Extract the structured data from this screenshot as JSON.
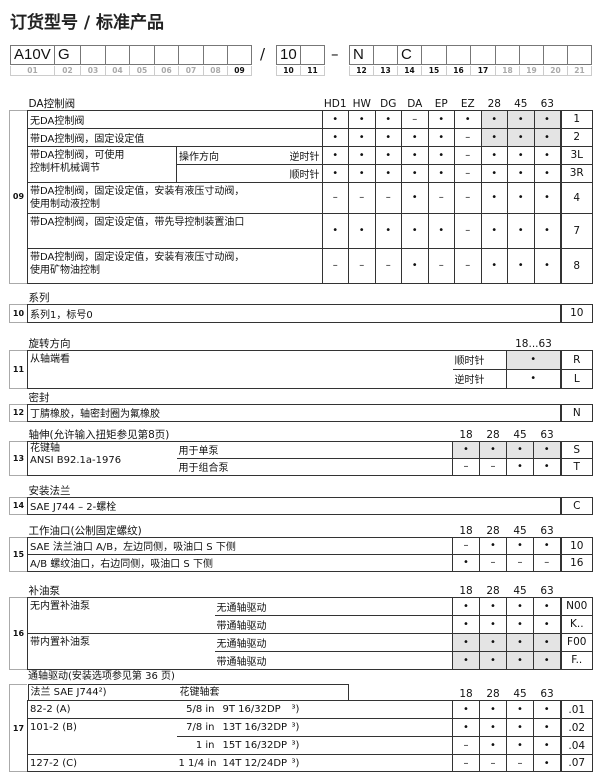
{
  "title": "订货型号 / 标准产品",
  "code_bar": {
    "group1": {
      "values": [
        "A10V",
        "G",
        "",
        "",
        "",
        "",
        "",
        "",
        ""
      ],
      "labels": [
        "01",
        "02",
        "03",
        "04",
        "05",
        "06",
        "07",
        "08",
        "09"
      ]
    },
    "sep1": "/",
    "group2": {
      "values": [
        "10",
        ""
      ],
      "labels": [
        "10",
        "11"
      ]
    },
    "sep2": "–",
    "group3": {
      "values": [
        "N",
        "",
        "C",
        "",
        "",
        "",
        "",
        "",
        "",
        ""
      ],
      "labels": [
        "12",
        "13",
        "14",
        "15",
        "16",
        "17",
        "18",
        "19",
        "20",
        "21"
      ]
    }
  },
  "colors": {
    "shaded": "#e4e4e4",
    "border": "#333333"
  },
  "symbols": {
    "available": "•",
    "not_available": "–"
  },
  "s09": {
    "title": "DA控制阀",
    "number": "09",
    "columns": [
      "HD1",
      "HW",
      "DG",
      "DA",
      "EP",
      "EZ",
      "28",
      "45",
      "63"
    ],
    "rows": [
      {
        "desc": "无DA控制阀",
        "values": [
          "•",
          "•",
          "•",
          "–",
          "•",
          "•",
          "•",
          "•",
          "•"
        ],
        "shaded": [
          0,
          0,
          0,
          0,
          0,
          0,
          1,
          1,
          1
        ],
        "code": "1"
      },
      {
        "desc": "带DA控制阀，固定设定值",
        "values": [
          "•",
          "•",
          "•",
          "•",
          "•",
          "–",
          "•",
          "•",
          "•"
        ],
        "shaded": [
          0,
          0,
          0,
          0,
          0,
          0,
          1,
          1,
          1
        ],
        "code": "2"
      },
      {
        "desc": "带DA控制阀，可使用",
        "desc2": "控制杆机械调节",
        "op": "操作方向",
        "sub": "逆时针",
        "values": [
          "•",
          "•",
          "•",
          "•",
          "•",
          "–",
          "•",
          "•",
          "•"
        ],
        "code": "3L"
      },
      {
        "sub": "顺时针",
        "values": [
          "•",
          "•",
          "•",
          "•",
          "•",
          "–",
          "•",
          "•",
          "•"
        ],
        "code": "3R"
      },
      {
        "desc": "带DA控制阀，固定设定值，安装有液压寸动阀，",
        "desc2": "使用制动液控制",
        "values": [
          "–",
          "–",
          "–",
          "•",
          "–",
          "–",
          "•",
          "•",
          "•"
        ],
        "code": "4"
      },
      {
        "desc": "带DA控制阀，固定设定值，带先导控制装置油口",
        "values": [
          "•",
          "•",
          "•",
          "•",
          "•",
          "–",
          "•",
          "•",
          "•"
        ],
        "code": "7"
      },
      {
        "desc": "带DA控制阀，固定设定值，安装有液压寸动阀，",
        "desc2": "使用矿物油控制",
        "values": [
          "–",
          "–",
          "–",
          "•",
          "–",
          "–",
          "•",
          "•",
          "•"
        ],
        "code": "8"
      }
    ]
  },
  "s10": {
    "title": "系列",
    "number": "10",
    "rows": [
      {
        "desc": "系列1，标号0",
        "values": [],
        "code": "10"
      }
    ]
  },
  "s11": {
    "title": "旋转方向",
    "number": "11",
    "columns": [
      "18...63"
    ],
    "desc": "从轴端看",
    "rows": [
      {
        "sub": "顺时针",
        "values": [
          "•"
        ],
        "shaded": [
          1
        ],
        "code": "R"
      },
      {
        "sub": "逆时针",
        "values": [
          "•"
        ],
        "code": "L"
      }
    ]
  },
  "s12": {
    "title": "密封",
    "number": "12",
    "rows": [
      {
        "desc": "丁腈橡胶，轴密封圈为氟橡胶",
        "values": [],
        "code": "N"
      }
    ]
  },
  "s13": {
    "title": "轴伸(允许输入扭矩参见第8页)",
    "number": "13",
    "columns": [
      "18",
      "28",
      "45",
      "63"
    ],
    "desc": "花键轴",
    "desc2": "ANSI B92.1a-1976",
    "rows": [
      {
        "sub": "用于单泵",
        "values": [
          "•",
          "•",
          "•",
          "•"
        ],
        "shaded": [
          1,
          1,
          1,
          1
        ],
        "code": "S"
      },
      {
        "sub": "用于组合泵",
        "values": [
          "–",
          "–",
          "•",
          "•"
        ],
        "code": "T"
      }
    ]
  },
  "s14": {
    "title": "安装法兰",
    "number": "14",
    "rows": [
      {
        "desc": "SAE J744 – 2-螺栓",
        "values": [],
        "code": "C"
      }
    ]
  },
  "s15": {
    "title": "工作油口(公制固定螺纹)",
    "number": "15",
    "columns": [
      "18",
      "28",
      "45",
      "63"
    ],
    "rows": [
      {
        "desc": "SAE 法兰油口 A/B，左边同侧，吸油口 S 下侧",
        "values": [
          "–",
          "•",
          "•",
          "•"
        ],
        "code": "10"
      },
      {
        "desc": "A/B 螺纹油口，右边同侧，吸油口 S 下侧",
        "values": [
          "•",
          "–",
          "–",
          "–"
        ],
        "code": "16"
      }
    ]
  },
  "s16": {
    "title": "补油泵",
    "number": "16",
    "columns": [
      "18",
      "28",
      "45",
      "63"
    ],
    "groups": [
      "无内置补油泵",
      "带内置补油泵"
    ],
    "rows": [
      {
        "sub": "无通轴驱动",
        "values": [
          "•",
          "•",
          "•",
          "•"
        ],
        "code": "N00"
      },
      {
        "sub": "带通轴驱动",
        "values": [
          "•",
          "•",
          "•",
          "•"
        ],
        "code": "K.."
      },
      {
        "sub": "无通轴驱动",
        "values": [
          "•",
          "•",
          "•",
          "•"
        ],
        "shaded": [
          1,
          1,
          1,
          1
        ],
        "code": "F00"
      },
      {
        "sub": "带通轴驱动",
        "values": [
          "•",
          "•",
          "•",
          "•"
        ],
        "shaded": [
          1,
          1,
          1,
          1
        ],
        "code": "F.."
      }
    ]
  },
  "s17": {
    "title": "通轴驱动(安装选项参见第 36 页)",
    "number": "17",
    "head_flange": "法兰 SAE J744²)",
    "head_spline": "花键轴套",
    "columns": [
      "18",
      "28",
      "45",
      "63"
    ],
    "rows": [
      {
        "flange": "82-2 (A)",
        "size": "5/8 in",
        "spline": "9T 16/32DP",
        "note": "³)",
        "values": [
          "•",
          "•",
          "•",
          "•"
        ],
        "code": ".01"
      },
      {
        "flange": "101-2 (B)",
        "size": "7/8 in",
        "spline": "13T 16/32DP",
        "note": "³)",
        "values": [
          "•",
          "•",
          "•",
          "•"
        ],
        "code": ".02"
      },
      {
        "size": "1 in",
        "spline": "15T 16/32DP",
        "note": "³)",
        "values": [
          "–",
          "•",
          "•",
          "•"
        ],
        "code": ".04"
      },
      {
        "flange": "127-2 (C)",
        "size": "1 1/4 in",
        "spline": "14T 12/24DP",
        "note": "³)",
        "values": [
          "–",
          "–",
          "–",
          "•"
        ],
        "code": ".07"
      }
    ]
  }
}
